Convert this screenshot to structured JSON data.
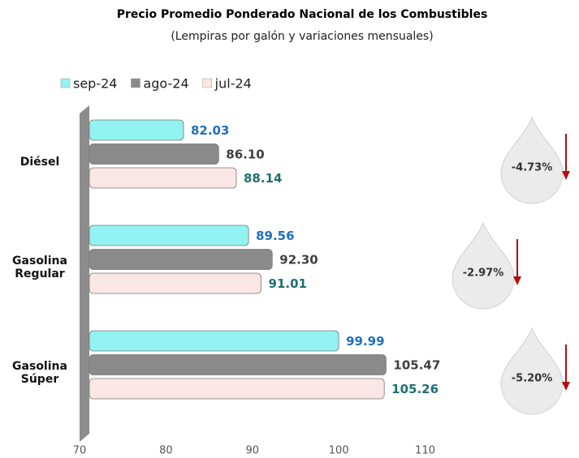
{
  "chart_data": {
    "type": "bar",
    "orientation": "horizontal",
    "title": "Precio Promedio Ponderado Nacional de los Combustibles",
    "subtitle": "(Lempiras por galón y variaciones mensuales)",
    "categories": [
      "Diésel",
      "Gasolina Regular",
      "Gasolina Súper"
    ],
    "series": [
      {
        "name": "sep-24",
        "color": "#93f2f2",
        "label_color": "#1f6fbf",
        "values": [
          82.03,
          89.56,
          99.99
        ],
        "value_labels": [
          "82.03",
          "89.56",
          "99.99"
        ]
      },
      {
        "name": "ago-24",
        "color": "#8a8a8a",
        "label_color": "#404040",
        "values": [
          86.1,
          92.3,
          105.47
        ],
        "value_labels": [
          "86.10",
          "92.30",
          "105.47"
        ]
      },
      {
        "name": "jul-24",
        "color": "#fbe6e6",
        "label_color": "#1f6f6f",
        "values": [
          88.14,
          91.01,
          105.26
        ],
        "value_labels": [
          "88.14",
          "91.01",
          "105.26"
        ]
      }
    ],
    "variations": [
      -4.73,
      -2.97,
      -5.2
    ],
    "variation_labels": [
      "-4.73%",
      "-2.97%",
      "-5.20%"
    ],
    "xlim": [
      70,
      120
    ],
    "xticks": [
      70,
      80,
      90,
      100,
      110
    ],
    "legend": "top-left"
  }
}
